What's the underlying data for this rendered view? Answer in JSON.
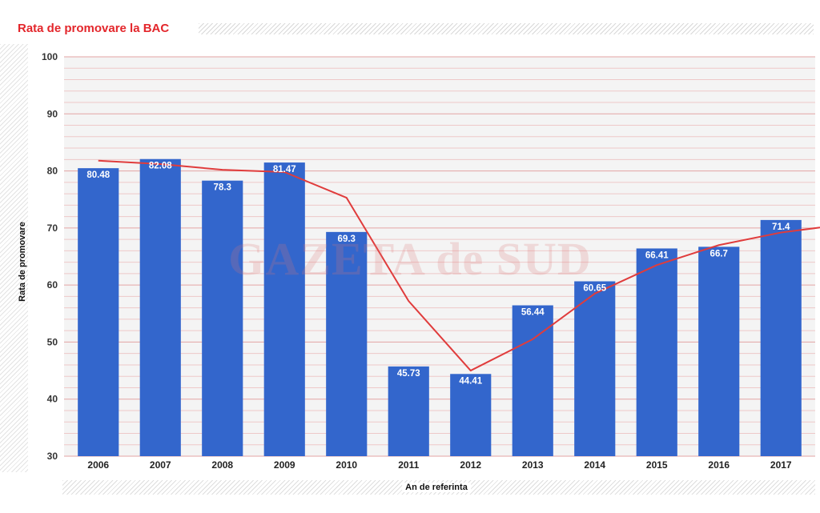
{
  "colors": {
    "title": "#e3262b",
    "bar": "#3366cc",
    "trend_line": "#e03c3c",
    "gridline": "#e3a3a3",
    "minor_gridline": "#eec8c8",
    "background": "#f4f4f4"
  },
  "watermark": {
    "text": "GAZETA de SUD"
  },
  "chart_data": {
    "type": "bar",
    "title": "Rata de promovare la BAC",
    "xlabel": "An de referinta",
    "ylabel": "Rata de promovare",
    "ylim": [
      30,
      100
    ],
    "yticks": [
      30,
      40,
      50,
      60,
      70,
      80,
      90,
      100
    ],
    "categories": [
      "2006",
      "2007",
      "2008",
      "2009",
      "2010",
      "2011",
      "2012",
      "2013",
      "2014",
      "2015",
      "2016",
      "2017"
    ],
    "values": [
      80.48,
      82.08,
      78.3,
      81.47,
      69.3,
      45.73,
      44.41,
      56.44,
      60.65,
      66.41,
      66.7,
      71.4
    ],
    "data_labels": [
      "80.48",
      "82.08",
      "78.3",
      "81.47",
      "69.3",
      "45.73",
      "44.41",
      "56.44",
      "60.65",
      "66.41",
      "66.7",
      "71.4"
    ],
    "trend_line": {
      "type": "line",
      "values": [
        81.8,
        81.2,
        80.2,
        79.8,
        75.3,
        57.2,
        45.0,
        50.5,
        58.5,
        63.5,
        67.0,
        69.2,
        70.6
      ]
    },
    "grid": true,
    "legend": "none"
  }
}
